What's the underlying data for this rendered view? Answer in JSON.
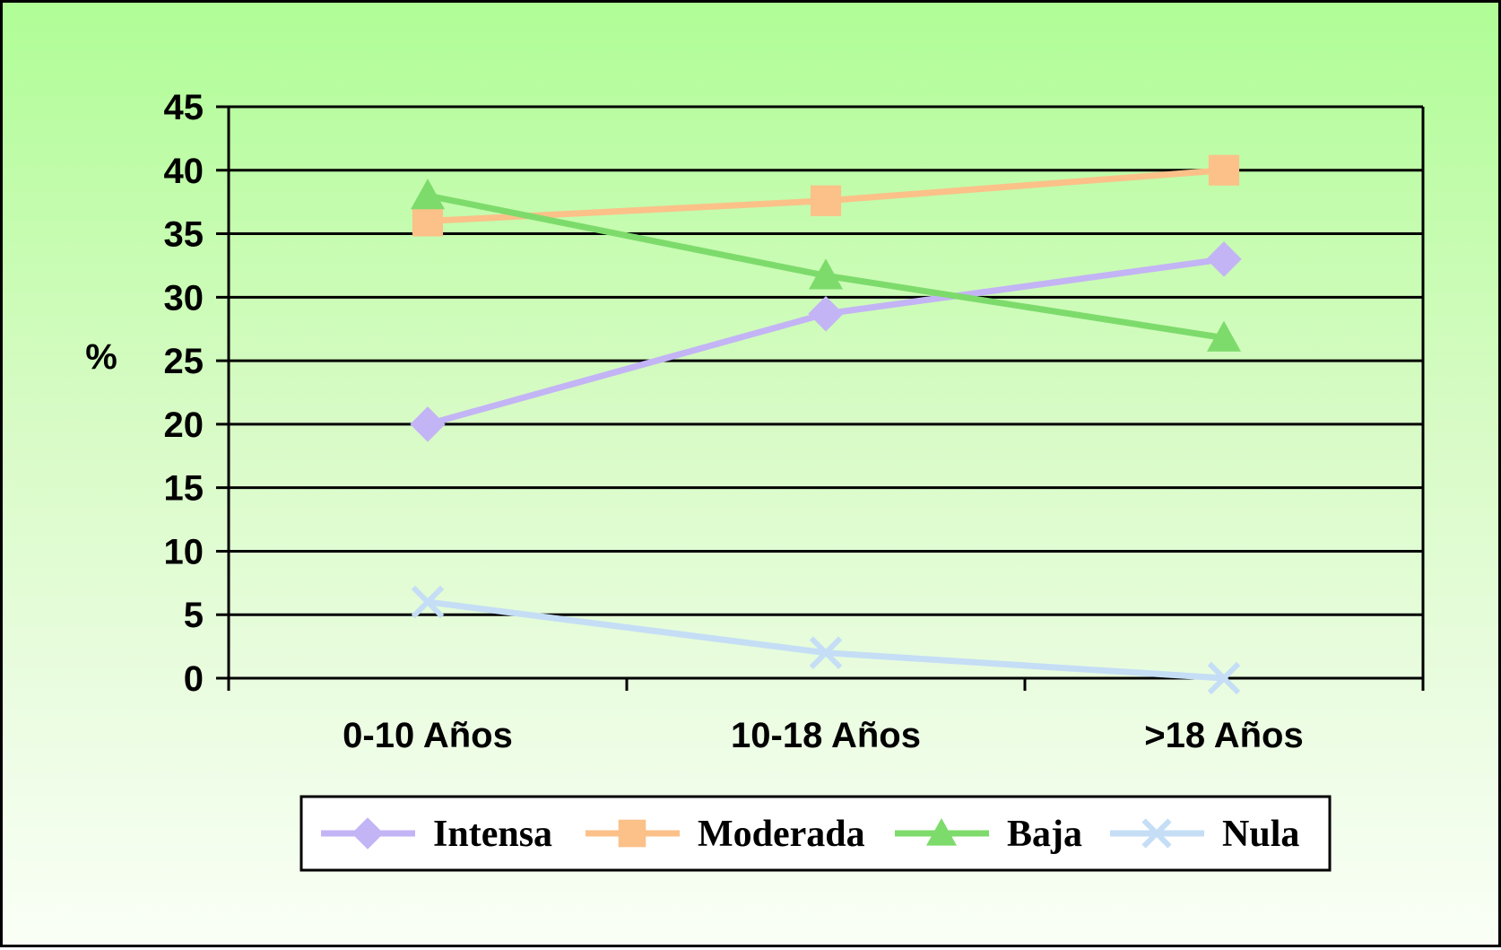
{
  "chart_data": {
    "type": "line",
    "ylabel": "%",
    "xlabel": "",
    "categories": [
      "0-10 Años",
      "10-18 Años",
      ">18 Años"
    ],
    "ylim": [
      0,
      45
    ],
    "ytick_step": 5,
    "yticks": [
      "0",
      "5",
      "10",
      "15",
      "20",
      "25",
      "30",
      "35",
      "40",
      "45"
    ],
    "grid": "horizontal",
    "legend_position": "bottom",
    "series": [
      {
        "name": "Intensa",
        "values": [
          20,
          28.7,
          33
        ],
        "color": "#c3b4f5",
        "marker": "diamond"
      },
      {
        "name": "Moderada",
        "values": [
          36,
          37.6,
          40
        ],
        "color": "#fbc189",
        "marker": "square"
      },
      {
        "name": "Baja",
        "values": [
          38,
          31.7,
          26.8
        ],
        "color": "#7ddb6b",
        "marker": "triangle"
      },
      {
        "name": "Nula",
        "values": [
          6,
          2,
          0
        ],
        "color": "#c5def6",
        "marker": "x"
      }
    ]
  }
}
